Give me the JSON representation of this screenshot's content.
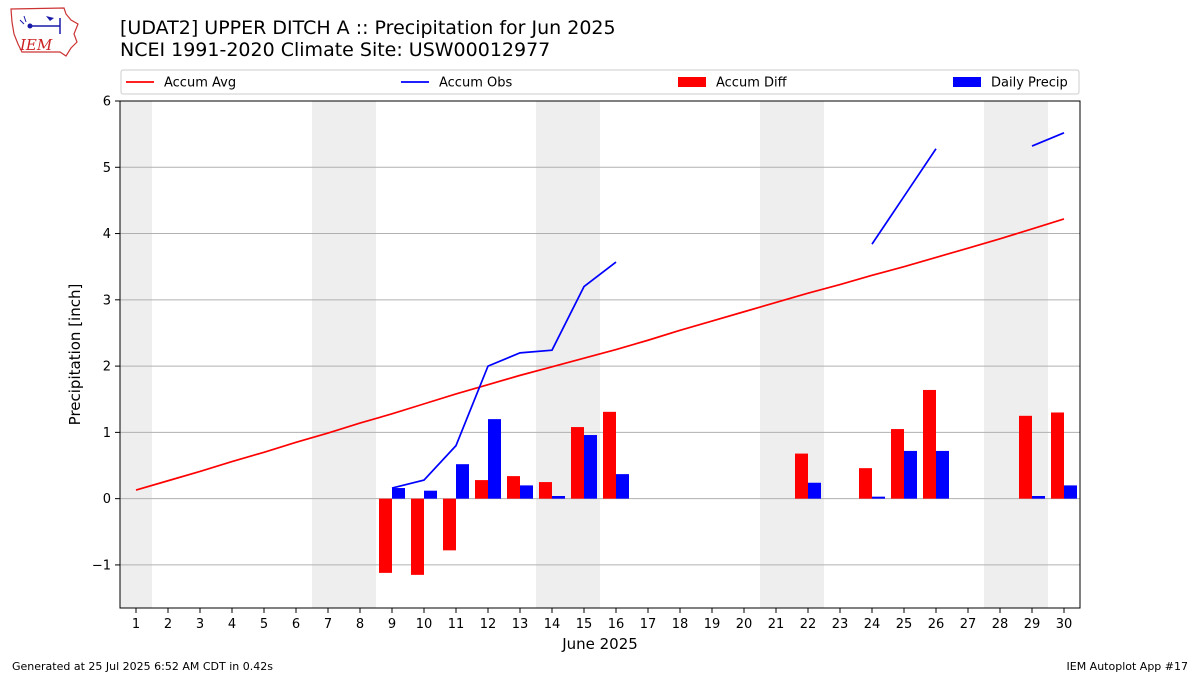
{
  "header": {
    "title_line1": "[UDAT2] UPPER DITCH A :: Precipitation for Jun 2025",
    "title_line2": "NCEI 1991-2020 Climate Site: USW00012977",
    "logo_text": "IEM"
  },
  "footer": {
    "left": "Generated at 25 Jul 2025 6:52 AM CDT in 0.42s",
    "right": "IEM Autoplot App #17"
  },
  "colors": {
    "avg": "#ff0000",
    "obs": "#0000ff",
    "diff": "#ff0000",
    "daily": "#0000ff",
    "weekend_shade": "#eeeeee",
    "grid": "#b0b0b0"
  },
  "chart_data": {
    "type": "bar",
    "xlabel": "June 2025",
    "ylabel": "Precipitation [inch]",
    "xlim": [
      0.5,
      30.5
    ],
    "ylim": [
      -1.65,
      6
    ],
    "yticks": [
      -1,
      0,
      1,
      2,
      3,
      4,
      5,
      6
    ],
    "ytick_labels": [
      "−1",
      "0",
      "1",
      "2",
      "3",
      "4",
      "5",
      "6"
    ],
    "days": [
      1,
      2,
      3,
      4,
      5,
      6,
      7,
      8,
      9,
      10,
      11,
      12,
      13,
      14,
      15,
      16,
      17,
      18,
      19,
      20,
      21,
      22,
      23,
      24,
      25,
      26,
      27,
      28,
      29,
      30
    ],
    "grid": "horizontal",
    "legend_position": "top",
    "shaded_day_spans": [
      [
        0.5,
        1.5
      ],
      [
        6.5,
        8.5
      ],
      [
        13.5,
        15.5
      ],
      [
        20.5,
        22.5
      ],
      [
        27.5,
        29.5
      ]
    ],
    "series": [
      {
        "name": "Accum Avg",
        "kind": "line",
        "values": [
          0.13,
          0.27,
          0.41,
          0.56,
          0.7,
          0.85,
          0.99,
          1.14,
          1.28,
          1.43,
          1.58,
          1.72,
          1.86,
          1.99,
          2.12,
          2.25,
          2.39,
          2.54,
          2.68,
          2.82,
          2.96,
          3.1,
          3.23,
          3.37,
          3.5,
          3.64,
          3.78,
          3.92,
          4.07,
          4.22
        ]
      },
      {
        "name": "Accum Obs",
        "kind": "line",
        "values": [
          null,
          null,
          null,
          null,
          null,
          null,
          null,
          null,
          0.16,
          0.28,
          0.8,
          2.0,
          2.2,
          2.24,
          3.2,
          3.57,
          null,
          null,
          null,
          null,
          null,
          null,
          null,
          3.84,
          4.56,
          5.28,
          null,
          null,
          5.32,
          5.52
        ]
      },
      {
        "name": "Accum Diff",
        "kind": "bar",
        "values": [
          null,
          null,
          null,
          null,
          null,
          null,
          null,
          null,
          -1.12,
          -1.15,
          -0.78,
          0.28,
          0.34,
          0.25,
          1.08,
          1.31,
          null,
          null,
          null,
          null,
          null,
          0.68,
          null,
          0.46,
          1.05,
          1.64,
          null,
          null,
          1.25,
          1.3
        ]
      },
      {
        "name": "Daily Precip",
        "kind": "bar",
        "values": [
          null,
          null,
          null,
          null,
          null,
          null,
          null,
          null,
          0.16,
          0.12,
          0.52,
          1.2,
          0.2,
          0.04,
          0.96,
          0.37,
          null,
          null,
          null,
          null,
          null,
          0.24,
          null,
          0.03,
          0.72,
          0.72,
          null,
          null,
          0.04,
          0.2
        ]
      }
    ]
  }
}
